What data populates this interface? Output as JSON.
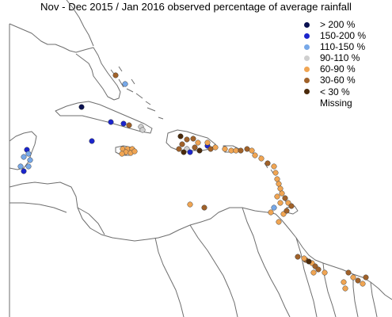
{
  "title": "Nov - Dec 2015 / Jan 2016 observed percentage of average rainfall",
  "legend": {
    "items": [
      {
        "label": "> 200 %",
        "color": "#0a1150"
      },
      {
        "label": "150-200 %",
        "color": "#1b25cc"
      },
      {
        "label": "110-150 %",
        "color": "#77a8e8"
      },
      {
        "label": "90-110 %",
        "color": "#cfcfcf"
      },
      {
        "label": "60-90 %",
        "color": "#f0a553"
      },
      {
        "label": "30-60 %",
        "color": "#a0622a"
      },
      {
        "label": "< 30  %",
        "color": "#4a2a0b"
      },
      {
        "label": "Missing",
        "color": null
      }
    ]
  },
  "stations": {
    "legend_color_keys": [
      "> 200 %",
      "150-200 %",
      "110-150 %",
      "90-110 %",
      "60-90 %",
      "30-60 %",
      "< 30  %"
    ]
  }
}
